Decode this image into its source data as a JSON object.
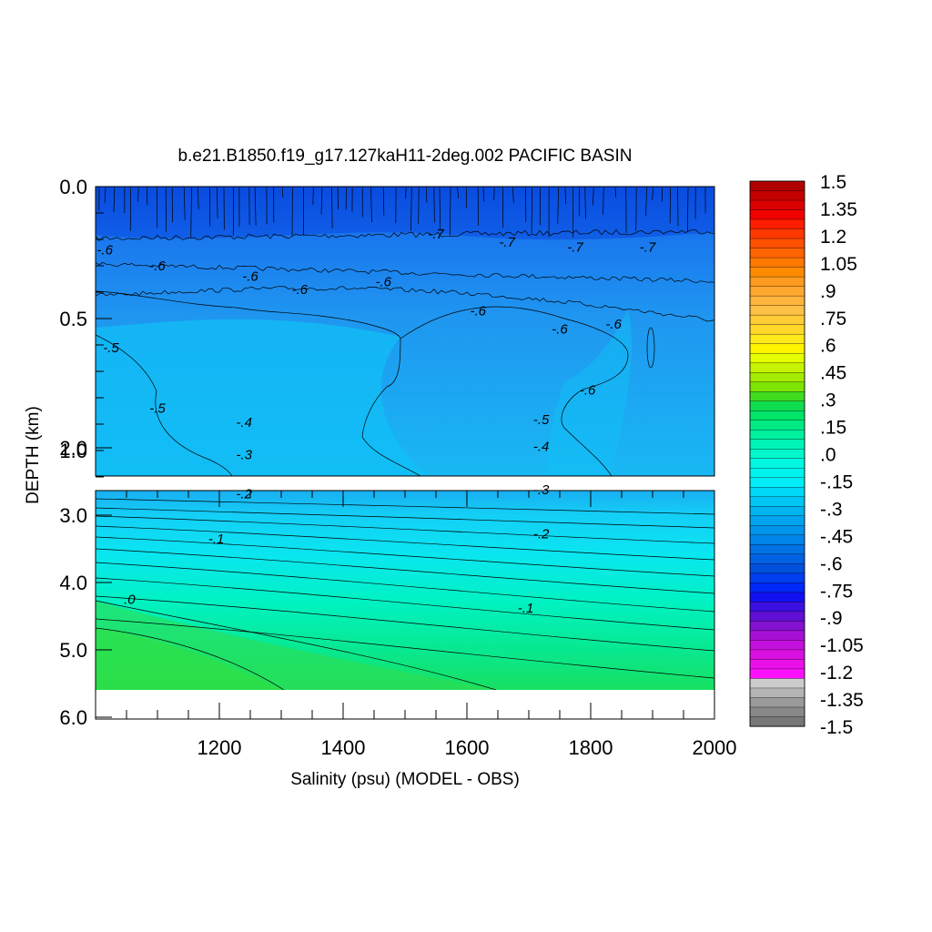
{
  "chart_data": {
    "type": "heatmap",
    "title": "b.e21.B1850.f19_g17.127kaH11-2deg.002 PACIFIC BASIN",
    "xlabel": "Salinity (psu) (MODEL - OBS)",
    "ylabel": "DEPTH (km)",
    "xlim": [
      1000,
      2000
    ],
    "x_ticks": [
      "1200",
      "1400",
      "1600",
      "1800",
      "2000"
    ],
    "upper_panel": {
      "ylim": [
        0.0,
        1.1
      ],
      "y_ticks": [
        "0.0",
        "0.5",
        "1.0"
      ],
      "contour_labels": [
        {
          "text": "-.7",
          "x": 1550,
          "y": 0.18
        },
        {
          "text": "-.7",
          "x": 1665,
          "y": 0.21
        },
        {
          "text": "-.7",
          "x": 1775,
          "y": 0.23
        },
        {
          "text": "-.7",
          "x": 1892,
          "y": 0.23
        },
        {
          "text": "-.6",
          "x": 1015,
          "y": 0.24
        },
        {
          "text": "-.6",
          "x": 1100,
          "y": 0.3
        },
        {
          "text": "-.6",
          "x": 1250,
          "y": 0.34
        },
        {
          "text": "-.6",
          "x": 1330,
          "y": 0.39
        },
        {
          "text": "-.6",
          "x": 1465,
          "y": 0.36
        },
        {
          "text": "-.6",
          "x": 1618,
          "y": 0.47
        },
        {
          "text": "-.6",
          "x": 1750,
          "y": 0.54
        },
        {
          "text": "-.6",
          "x": 1837,
          "y": 0.52
        },
        {
          "text": "-.6",
          "x": 1795,
          "y": 0.77
        },
        {
          "text": "-.5",
          "x": 1025,
          "y": 0.61
        },
        {
          "text": "-.5",
          "x": 1100,
          "y": 0.84
        }
      ]
    },
    "lower_panel": {
      "ylim": [
        1.1,
        6.0
      ],
      "y_ticks": [
        "2.0",
        "3.0",
        "4.0",
        "5.0",
        "6.0"
      ],
      "contour_labels": [
        {
          "text": "-.5",
          "x": 1720,
          "y": 1.58
        },
        {
          "text": "-.4",
          "x": 1240,
          "y": 1.62
        },
        {
          "text": "-.4",
          "x": 1720,
          "y": 1.98
        },
        {
          "text": "-.3",
          "x": 1240,
          "y": 2.1
        },
        {
          "text": "-.3",
          "x": 1720,
          "y": 2.62
        },
        {
          "text": "-.2",
          "x": 1240,
          "y": 2.68
        },
        {
          "text": "-.2",
          "x": 1720,
          "y": 3.28
        },
        {
          "text": "-.1",
          "x": 1195,
          "y": 3.35
        },
        {
          "text": "-.1",
          "x": 1695,
          "y": 4.38
        },
        {
          "text": ".0",
          "x": 1055,
          "y": 4.25
        }
      ]
    },
    "colorbar": {
      "labels": [
        "1.5",
        "1.35",
        "1.2",
        "1.05",
        ".9",
        ".75",
        ".6",
        ".45",
        ".3",
        ".15",
        ".0",
        "-.15",
        "-.3",
        "-.45",
        "-.6",
        "-.75",
        "-.9",
        "-1.05",
        "-1.2",
        "-1.35",
        "-1.5"
      ],
      "colors": [
        "#b00000",
        "#c40000",
        "#dc0000",
        "#f00000",
        "#ff1c00",
        "#ff3800",
        "#ff5000",
        "#ff6400",
        "#ff7800",
        "#ff8c00",
        "#ff9a20",
        "#ffa830",
        "#ffb43c",
        "#ffc046",
        "#ffcc36",
        "#ffd82a",
        "#ffe81c",
        "#fff500",
        "#e6ff00",
        "#c6f400",
        "#a4ec00",
        "#7ee400",
        "#40dc20",
        "#10dc50",
        "#00e468",
        "#00ea84",
        "#00f09e",
        "#00f4b8",
        "#00f8cc",
        "#00f8e0",
        "#00f4ee",
        "#00ecf8",
        "#00d8f8",
        "#00c6f4",
        "#00b4f0",
        "#00a4ee",
        "#0094ec",
        "#0084ea",
        "#0072e6",
        "#0062e2",
        "#0050de",
        "#003ef0",
        "#0028fa",
        "#1010f0",
        "#3c10e0",
        "#6010d4",
        "#8410d0",
        "#a610d4",
        "#c410dc",
        "#d810e0",
        "#ea10e8",
        "#ff10ff",
        "#cccccc",
        "#b4b4b4",
        "#9a9a9a",
        "#888888",
        "#777777"
      ]
    }
  }
}
